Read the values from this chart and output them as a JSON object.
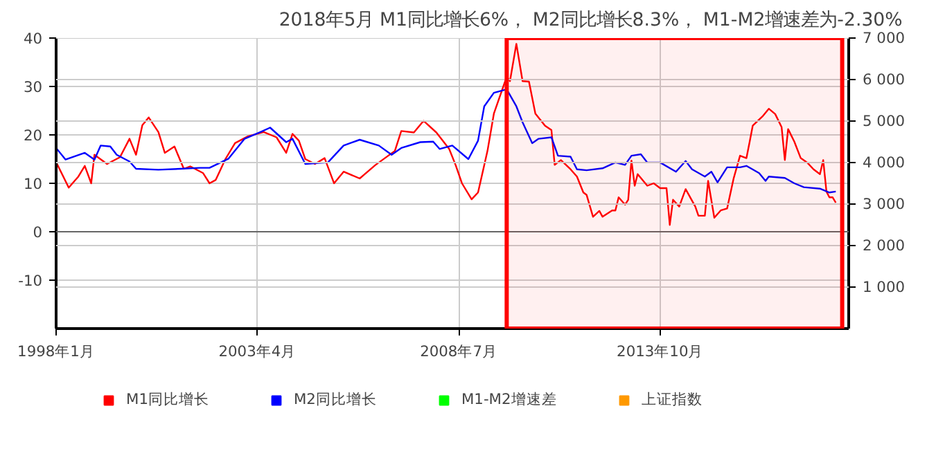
{
  "chart_data": {
    "type": "line",
    "title": "2018年5月    M1同比增长6%，  M2同比增长8.3%，  M1-M2增速差为-2.30%",
    "xlim": [
      "1998-01",
      "2018-09"
    ],
    "xticks": [
      {
        "value": "1998-01",
        "label": "1998年1月"
      },
      {
        "value": "2003-04",
        "label": "2003年4月"
      },
      {
        "value": "2008-07",
        "label": "2008年7月"
      },
      {
        "value": "2013-10",
        "label": "2013年10月"
      }
    ],
    "ylim": [
      -20,
      40
    ],
    "yticks": [
      -10,
      0,
      10,
      20,
      30,
      40
    ],
    "y2lim": [
      0,
      7000
    ],
    "y2ticks": [
      {
        "value": 1000,
        "label": "1 000"
      },
      {
        "value": 2000,
        "label": "2 000"
      },
      {
        "value": 3000,
        "label": "3 000"
      },
      {
        "value": 4000,
        "label": "4 000"
      },
      {
        "value": 5000,
        "label": "5 000"
      },
      {
        "value": 6000,
        "label": "6 000"
      },
      {
        "value": 7000,
        "label": "7 000"
      }
    ],
    "grid": true,
    "legend": "bottom",
    "line_style": "solid",
    "marker": "none",
    "ref_lines": [
      {
        "axis": "y",
        "value": 0,
        "color": "#666666"
      }
    ],
    "bands": [
      {
        "axis": "x",
        "from": "2009-10",
        "to": "2018-07",
        "color": "#ff0000"
      }
    ],
    "series": [
      {
        "name": "M1同比增长",
        "color": "#ff0000",
        "x": [
          "1998-01",
          "1998-05",
          "1998-08",
          "1998-10",
          "1998-12",
          "1999-01",
          "1999-05",
          "1999-09",
          "1999-12",
          "2000-02",
          "2000-04",
          "2000-06",
          "2000-09",
          "2000-11",
          "2001-02",
          "2001-05",
          "2001-07",
          "2001-11",
          "2002-01",
          "2002-03",
          "2002-06",
          "2002-09",
          "2003-01",
          "2003-06",
          "2003-10",
          "2004-01",
          "2004-03",
          "2004-05",
          "2004-07",
          "2004-10",
          "2005-01",
          "2005-04",
          "2005-07",
          "2005-12",
          "2006-05",
          "2006-11",
          "2007-01",
          "2007-05",
          "2007-08",
          "2007-12",
          "2008-04",
          "2008-06",
          "2008-08",
          "2008-11",
          "2009-01",
          "2009-04",
          "2009-06",
          "2009-10",
          "2009-11",
          "2010-01",
          "2010-03",
          "2010-05",
          "2010-07",
          "2010-10",
          "2010-12",
          "2011-01",
          "2011-03",
          "2011-06",
          "2011-08",
          "2011-10",
          "2011-11",
          "2012-01",
          "2012-03",
          "2012-04",
          "2012-07",
          "2012-08",
          "2012-09",
          "2012-11",
          "2012-12",
          "2013-01",
          "2013-02",
          "2013-03",
          "2013-06",
          "2013-08",
          "2013-10",
          "2013-12",
          "2014-01",
          "2014-02",
          "2014-04",
          "2014-06",
          "2014-09",
          "2014-10",
          "2014-12",
          "2015-01",
          "2015-03",
          "2015-05",
          "2015-07",
          "2015-09",
          "2015-11",
          "2016-01",
          "2016-02",
          "2016-03",
          "2016-06",
          "2016-08",
          "2016-10",
          "2016-12",
          "2017-01",
          "2017-02",
          "2017-04",
          "2017-06",
          "2017-08",
          "2017-10",
          "2017-12",
          "2018-01",
          "2018-02",
          "2018-03",
          "2018-04",
          "2018-05"
        ],
        "values": [
          14.4,
          9.1,
          11.4,
          13.6,
          10,
          15.9,
          14,
          15.4,
          19.2,
          15.9,
          22,
          23.6,
          20.6,
          16.3,
          17.6,
          13,
          13.5,
          12.1,
          10,
          10.7,
          15,
          18.3,
          19.7,
          20.6,
          19.5,
          16.3,
          20.2,
          18.8,
          15,
          14,
          15.2,
          10,
          12.4,
          11,
          13.8,
          16.7,
          20.8,
          20.5,
          22.9,
          20.5,
          17.1,
          13.8,
          10,
          6.7,
          8.1,
          16.7,
          24.4,
          32,
          31.1,
          38.8,
          31.1,
          31,
          24.4,
          21.9,
          21,
          13.8,
          14.8,
          12.9,
          11.4,
          8.1,
          7.6,
          3.1,
          4.3,
          3.1,
          4.4,
          4.4,
          7.1,
          5.6,
          6.6,
          14.7,
          9.5,
          11.9,
          9.5,
          10,
          9,
          9,
          1.4,
          6.6,
          5.2,
          8.8,
          5.2,
          3.3,
          3.3,
          10.5,
          2.9,
          4.4,
          4.8,
          11,
          15.7,
          15.2,
          18.6,
          21.9,
          23.8,
          25.4,
          24.3,
          21.6,
          14.8,
          21.2,
          18.6,
          15.2,
          14.3,
          12.9,
          11.9,
          14.8,
          8.3,
          7.1,
          7.1,
          6
        ]
      },
      {
        "name": "M2同比增长",
        "color": "#0000ff",
        "x": [
          "1998-01",
          "1998-04",
          "1998-10",
          "1999-01",
          "1999-03",
          "1999-06",
          "1999-08",
          "1999-12",
          "2000-02",
          "2000-09",
          "2001-04",
          "2001-10",
          "2002-01",
          "2002-07",
          "2002-12",
          "2003-05",
          "2003-08",
          "2004-01",
          "2004-03",
          "2004-07",
          "2004-11",
          "2005-02",
          "2005-07",
          "2005-12",
          "2006-06",
          "2006-10",
          "2007-01",
          "2007-07",
          "2007-11",
          "2008-01",
          "2008-05",
          "2008-10",
          "2009-01",
          "2009-03",
          "2009-06",
          "2009-10",
          "2010-01",
          "2010-03",
          "2010-06",
          "2010-08",
          "2010-12",
          "2011-02",
          "2011-06",
          "2011-08",
          "2011-11",
          "2012-04",
          "2012-08",
          "2012-11",
          "2013-01",
          "2013-04",
          "2013-06",
          "2013-10",
          "2014-03",
          "2014-06",
          "2014-08",
          "2014-12",
          "2015-02",
          "2015-04",
          "2015-07",
          "2015-11",
          "2016-01",
          "2016-05",
          "2016-07",
          "2016-08",
          "2017-01",
          "2017-04",
          "2017-07",
          "2017-12",
          "2018-03",
          "2018-05"
        ],
        "values": [
          17.3,
          14.9,
          16.3,
          14.9,
          17.8,
          17.6,
          15.9,
          14.5,
          13,
          12.8,
          13,
          13.2,
          13.2,
          15.1,
          19.2,
          20.6,
          21.5,
          18.5,
          19.2,
          14,
          14.2,
          14.3,
          17.8,
          19,
          17.8,
          15.9,
          17.3,
          18.5,
          18.6,
          17.1,
          17.8,
          15,
          18.8,
          25.9,
          28.7,
          29.4,
          25.9,
          22.6,
          18.3,
          19.2,
          19.5,
          15.7,
          15.5,
          12.9,
          12.7,
          13.1,
          14.3,
          13.8,
          15.7,
          16,
          14.3,
          14.3,
          12.4,
          14.6,
          12.9,
          11.4,
          12.4,
          10.2,
          13.3,
          13.3,
          13.6,
          12.1,
          10.5,
          11.4,
          11.1,
          10,
          9.2,
          8.9,
          8.1,
          8.3
        ]
      },
      {
        "name": "M1-M2增速差",
        "color": "#00ff00"
      },
      {
        "name": "上证指数",
        "color": "#ff9900"
      }
    ]
  }
}
